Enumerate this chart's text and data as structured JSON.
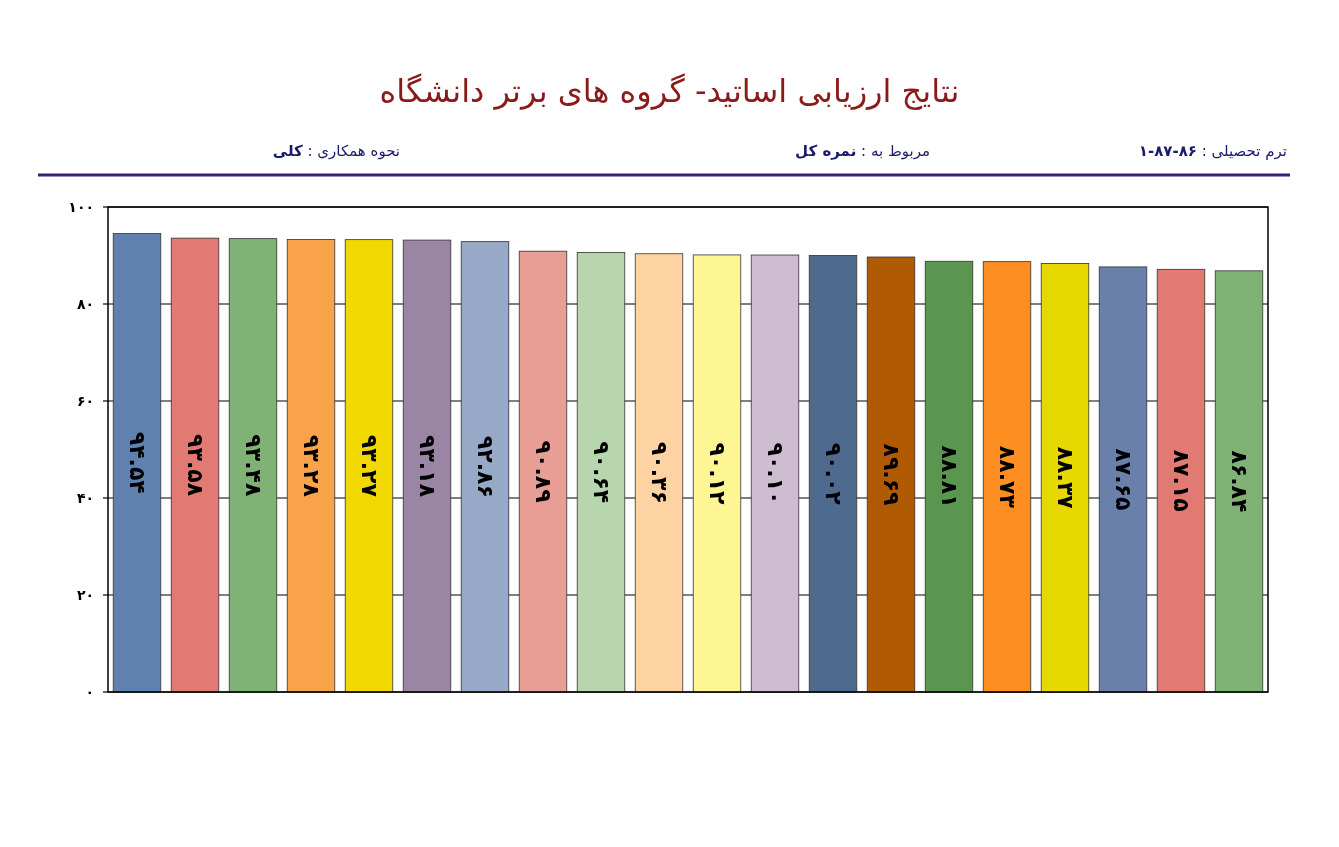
{
  "chart_data": {
    "type": "bar",
    "title": "نتایج ارزیابی اساتید- گروه های برتر دانشگاه",
    "annotations": [
      "ترم تحصیلی : **۸۶-۸۷-۱**",
      "مربوط به : **نمره کل**",
      "نحوه همکاری : **کلی**"
    ],
    "categories": [
      null,
      null,
      null,
      null,
      null,
      null,
      null,
      null,
      null,
      null,
      null,
      null,
      null,
      null,
      null,
      null,
      null,
      null,
      null,
      null
    ],
    "values": [
      94.54,
      93.58,
      93.48,
      93.28,
      93.27,
      93.18,
      92.86,
      90.89,
      90.64,
      90.36,
      90.12,
      90.1,
      90.02,
      89.69,
      88.81,
      88.73,
      88.37,
      87.65,
      87.15,
      86.84
    ],
    "value_labels": [
      "۹۴.۵۴",
      "۹۳.۵۸",
      "۹۳.۴۸",
      "۹۳.۲۸",
      "۹۳.۲۷",
      "۹۳.۱۸",
      "۹۲.۸۶",
      "۹۰.۸۹",
      "۹۰.۶۴",
      "۹۰.۳۶",
      "۹۰.۱۲",
      "۹۰.۱۰",
      "۹۰.۰۲",
      "۸۹.۶۹",
      "۸۸.۸۱",
      "۸۸.۷۳",
      "۸۸.۳۷",
      "۸۷.۶۵",
      "۸۷.۱۵",
      "۸۶.۸۴"
    ],
    "colors": [
      "#6080b0",
      "#e07a72",
      "#7fb274",
      "#f8a24a",
      "#f0d800",
      "#9a86a4",
      "#96aac8",
      "#e89e94",
      "#b8d6ae",
      "#fed3a4",
      "#fef594",
      "#cebdd0",
      "#4f6a8f",
      "#b05a04",
      "#5b9650",
      "#fd8e22",
      "#e6d800",
      "#6880aa",
      "#e07a72",
      "#7fb274"
    ],
    "ylim": [
      0,
      100
    ],
    "yticks": [
      {
        "value": 0,
        "label": "۰"
      },
      {
        "value": 20,
        "label": "۲۰"
      },
      {
        "value": 40,
        "label": "۴۰"
      },
      {
        "value": 60,
        "label": "۶۰"
      },
      {
        "value": 80,
        "label": "۸۰"
      },
      {
        "value": 100,
        "label": "۱۰۰"
      }
    ],
    "grid": "y"
  }
}
